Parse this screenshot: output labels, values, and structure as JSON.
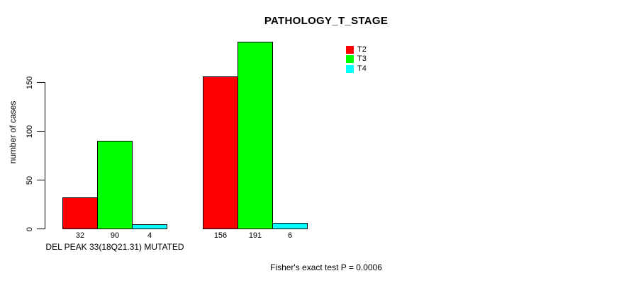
{
  "chart_data": {
    "type": "bar",
    "title": "PATHOLOGY_T_STAGE",
    "ylabel": "number of cases",
    "ylim": [
      0,
      200
    ],
    "yticks": [
      0,
      50,
      100,
      150
    ],
    "grid": false,
    "legend_position": "top-right",
    "group_axis_label": "DEL PEAK 33(18Q21.31) MUTATED",
    "groups": [
      "DEL PEAK 33(18Q21.31) MUTATED",
      ""
    ],
    "series": [
      {
        "name": "T2",
        "color": "#ff0000",
        "values": [
          32,
          156
        ]
      },
      {
        "name": "T3",
        "color": "#00ff00",
        "values": [
          90,
          191
        ]
      },
      {
        "name": "T4",
        "color": "#00ffff",
        "values": [
          4,
          6
        ]
      }
    ],
    "bar_value_labels": [
      [
        32,
        90,
        4
      ],
      [
        156,
        191,
        6
      ]
    ],
    "annotation": "Fisher's exact test P = 0.0006"
  }
}
